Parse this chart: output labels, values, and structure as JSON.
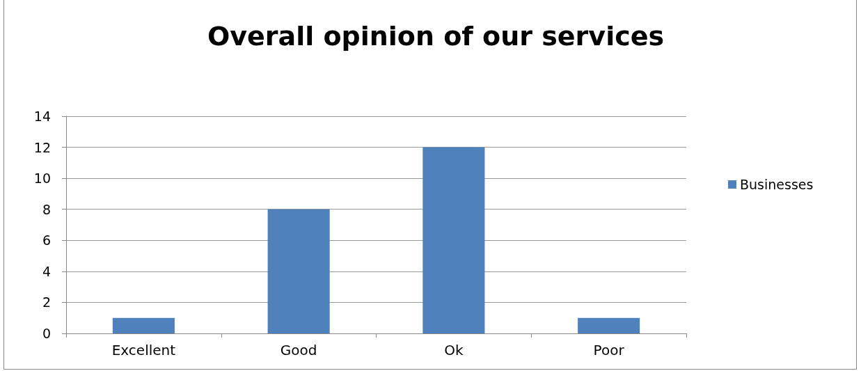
{
  "chart_data": {
    "type": "bar",
    "title": "Overall opinion of our services",
    "categories": [
      "Excellent",
      "Good",
      "Ok",
      "Poor"
    ],
    "series": [
      {
        "name": "Businesses",
        "color": "#4f81bd",
        "values": [
          1,
          8,
          12,
          1
        ]
      }
    ],
    "ylim": [
      0,
      14
    ],
    "yticks": [
      0,
      2,
      4,
      6,
      8,
      10,
      12,
      14
    ],
    "grid": "y",
    "legend": "right"
  }
}
